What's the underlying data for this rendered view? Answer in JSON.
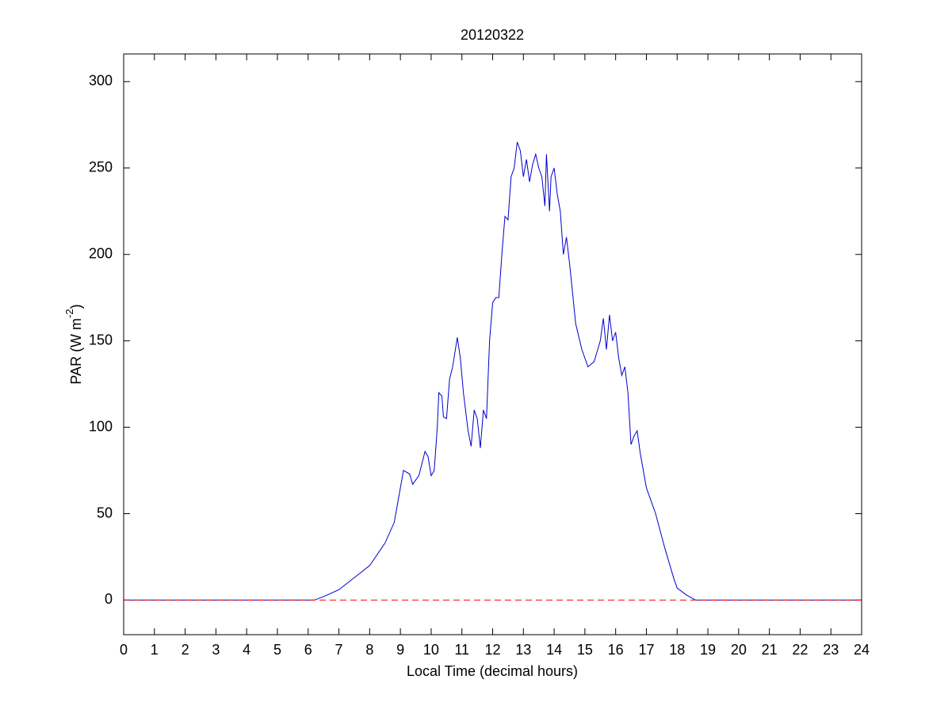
{
  "chart_data": {
    "type": "line",
    "title": "20120322",
    "xlabel": "Local Time (decimal hours)",
    "ylabel": [
      "PAR (W m",
      "-2",
      ")"
    ],
    "xlim": [
      0,
      24
    ],
    "xticks": [
      0,
      1,
      2,
      3,
      4,
      5,
      6,
      7,
      8,
      9,
      10,
      11,
      12,
      13,
      14,
      15,
      16,
      17,
      18,
      19,
      20,
      21,
      22,
      23,
      24
    ],
    "ylim": [
      -20,
      316
    ],
    "yticks": [
      0,
      50,
      100,
      150,
      200,
      250,
      300
    ],
    "hline": {
      "value": 0,
      "color": "#ff0000",
      "dashed": true
    },
    "series": [
      {
        "color": "#0000cc",
        "x": [
          0,
          6.0,
          6.2,
          6.5,
          7,
          7.5,
          8,
          8.5,
          8.8,
          9.0,
          9.1,
          9.3,
          9.4,
          9.6,
          9.8,
          9.9,
          10.0,
          10.1,
          10.2,
          10.25,
          10.35,
          10.4,
          10.5,
          10.6,
          10.7,
          10.85,
          10.95,
          11.05,
          11.2,
          11.3,
          11.4,
          11.5,
          11.6,
          11.7,
          11.8,
          11.9,
          12.0,
          12.1,
          12.2,
          12.3,
          12.4,
          12.5,
          12.6,
          12.7,
          12.8,
          12.9,
          13.0,
          13.1,
          13.2,
          13.3,
          13.4,
          13.5,
          13.6,
          13.7,
          13.75,
          13.85,
          13.9,
          14.0,
          14.1,
          14.2,
          14.3,
          14.4,
          14.5,
          14.7,
          14.9,
          15.1,
          15.3,
          15.5,
          15.6,
          15.7,
          15.8,
          15.9,
          16.0,
          16.1,
          16.2,
          16.3,
          16.4,
          16.5,
          16.6,
          16.7,
          16.8,
          17.0,
          17.3,
          17.6,
          17.9,
          18.0,
          18.3,
          18.6,
          24
        ],
        "values": [
          0,
          0,
          0,
          2,
          6,
          13,
          20,
          33,
          45,
          65,
          75,
          73,
          67,
          72,
          86,
          83,
          72,
          75,
          100,
          120,
          118,
          106,
          105,
          128,
          135,
          152,
          140,
          120,
          98,
          89,
          110,
          105,
          88,
          110,
          105,
          150,
          172,
          175,
          175,
          200,
          222,
          220,
          245,
          250,
          265,
          260,
          245,
          255,
          242,
          252,
          258,
          250,
          245,
          228,
          258,
          225,
          245,
          250,
          235,
          225,
          200,
          210,
          195,
          160,
          145,
          135,
          138,
          150,
          163,
          145,
          165,
          150,
          155,
          140,
          130,
          135,
          120,
          90,
          95,
          98,
          85,
          65,
          50,
          30,
          12,
          7,
          3,
          0,
          0
        ]
      }
    ]
  }
}
